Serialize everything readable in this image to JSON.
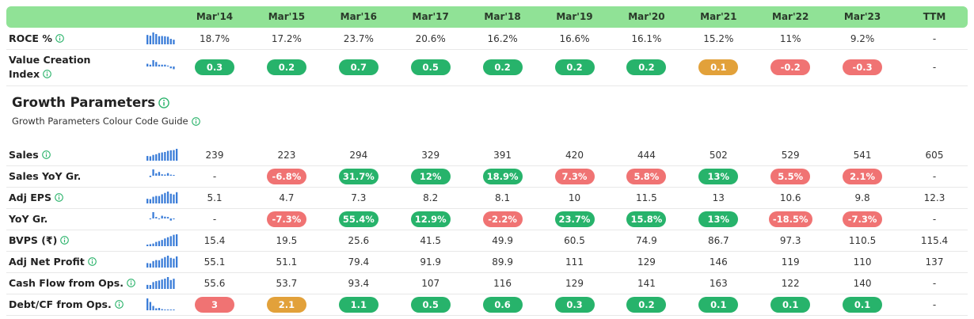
{
  "header": {
    "columns": [
      "Mar'14",
      "Mar'15",
      "Mar'16",
      "Mar'17",
      "Mar'18",
      "Mar'19",
      "Mar'20",
      "Mar'21",
      "Mar'22",
      "Mar'23",
      "TTM"
    ]
  },
  "table1": {
    "rows": [
      {
        "label": "ROCE %",
        "info": true,
        "cells": [
          "18.7%",
          "17.2%",
          "23.7%",
          "20.6%",
          "16.2%",
          "16.6%",
          "16.1%",
          "15.2%",
          "11%",
          "9.2%",
          "-"
        ]
      },
      {
        "label": "Value Creation Index",
        "info": true,
        "cells": [
          {
            "text": "0.3",
            "color": "#27b36b"
          },
          {
            "text": "0.2",
            "color": "#27b36b"
          },
          {
            "text": "0.7",
            "color": "#27b36b"
          },
          {
            "text": "0.5",
            "color": "#27b36b"
          },
          {
            "text": "0.2",
            "color": "#27b36b"
          },
          {
            "text": "0.2",
            "color": "#27b36b"
          },
          {
            "text": "0.2",
            "color": "#27b36b"
          },
          {
            "text": "0.1",
            "color": "#e2a13a"
          },
          {
            "text": "-0.2",
            "color": "#f07373"
          },
          {
            "text": "-0.3",
            "color": "#f07373"
          },
          "-"
        ]
      }
    ]
  },
  "section": {
    "title": "Growth Parameters",
    "subtitle": "Growth Parameters Colour Code Guide"
  },
  "table2": {
    "rows": [
      {
        "label": "Sales",
        "info": true,
        "cells": [
          "239",
          "223",
          "294",
          "329",
          "391",
          "420",
          "444",
          "502",
          "529",
          "541",
          "605"
        ]
      },
      {
        "label": "Sales YoY Gr.",
        "info": false,
        "cells": [
          "-",
          {
            "text": "-6.8%",
            "color": "#f07373"
          },
          {
            "text": "31.7%",
            "color": "#27b36b"
          },
          {
            "text": "12%",
            "color": "#27b36b"
          },
          {
            "text": "18.9%",
            "color": "#27b36b"
          },
          {
            "text": "7.3%",
            "color": "#f07373"
          },
          {
            "text": "5.8%",
            "color": "#f07373"
          },
          {
            "text": "13%",
            "color": "#27b36b"
          },
          {
            "text": "5.5%",
            "color": "#f07373"
          },
          {
            "text": "2.1%",
            "color": "#f07373"
          },
          "-"
        ]
      },
      {
        "label": "Adj EPS",
        "info": true,
        "cells": [
          "5.1",
          "4.7",
          "7.3",
          "8.2",
          "8.1",
          "10",
          "11.5",
          "13",
          "10.6",
          "9.8",
          "12.3"
        ]
      },
      {
        "label": "YoY Gr.",
        "info": false,
        "cells": [
          "-",
          {
            "text": "-7.3%",
            "color": "#f07373"
          },
          {
            "text": "55.4%",
            "color": "#27b36b"
          },
          {
            "text": "12.9%",
            "color": "#27b36b"
          },
          {
            "text": "-2.2%",
            "color": "#f07373"
          },
          {
            "text": "23.7%",
            "color": "#27b36b"
          },
          {
            "text": "15.8%",
            "color": "#27b36b"
          },
          {
            "text": "13%",
            "color": "#27b36b"
          },
          {
            "text": "-18.5%",
            "color": "#f07373"
          },
          {
            "text": "-7.3%",
            "color": "#f07373"
          },
          "-"
        ]
      },
      {
        "label": "BVPS (₹)",
        "info": true,
        "cells": [
          "15.4",
          "19.5",
          "25.6",
          "41.5",
          "49.9",
          "60.5",
          "74.9",
          "86.7",
          "97.3",
          "110.5",
          "115.4"
        ]
      },
      {
        "label": "Adj Net Profit",
        "info": true,
        "cells": [
          "55.1",
          "51.1",
          "79.4",
          "91.9",
          "89.9",
          "111",
          "129",
          "146",
          "119",
          "110",
          "137"
        ]
      },
      {
        "label": "Cash Flow from Ops.",
        "info": true,
        "cells": [
          "55.6",
          "53.7",
          "93.4",
          "107",
          "116",
          "129",
          "141",
          "163",
          "122",
          "140",
          "-"
        ]
      },
      {
        "label": "Debt/CF from Ops.",
        "info": true,
        "cells": [
          {
            "text": "3",
            "color": "#f07373"
          },
          {
            "text": "2.1",
            "color": "#e2a13a"
          },
          {
            "text": "1.1",
            "color": "#27b36b"
          },
          {
            "text": "0.5",
            "color": "#27b36b"
          },
          {
            "text": "0.6",
            "color": "#27b36b"
          },
          {
            "text": "0.3",
            "color": "#27b36b"
          },
          {
            "text": "0.2",
            "color": "#27b36b"
          },
          {
            "text": "0.1",
            "color": "#27b36b"
          },
          {
            "text": "0.1",
            "color": "#27b36b"
          },
          {
            "text": "0.1",
            "color": "#27b36b"
          },
          "-"
        ]
      }
    ]
  }
}
